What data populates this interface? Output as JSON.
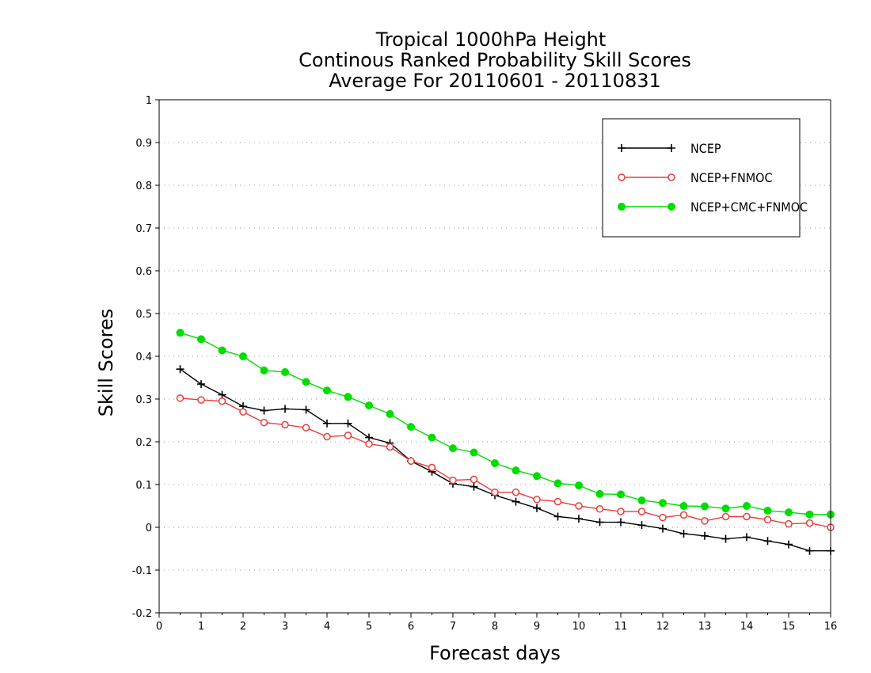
{
  "chart_data": {
    "type": "line",
    "title": [
      "Tropical 1000hPa Height",
      "Continous Ranked Probability Skill Scores",
      "Average For 20110601 - 20110831"
    ],
    "xlabel": "Forecast days",
    "ylabel": "Skill Scores",
    "xlim": [
      0,
      16
    ],
    "ylim": [
      -0.2,
      1
    ],
    "xticks": [
      "0",
      "1",
      "2",
      "3",
      "4",
      "5",
      "6",
      "7",
      "8",
      "9",
      "10",
      "11",
      "12",
      "13",
      "14",
      "15",
      "16"
    ],
    "yticks": [
      "-0.2",
      "-0.1",
      "0",
      "0.1",
      "0.2",
      "0.3",
      "0.4",
      "0.5",
      "0.6",
      "0.7",
      "0.8",
      "0.9",
      "1"
    ],
    "grid": "horizontal dotted",
    "legend_position": "top-right",
    "x": [
      0.5,
      1,
      1.5,
      2,
      2.5,
      3,
      3.5,
      4,
      4.5,
      5,
      5.5,
      6,
      6.5,
      7,
      7.5,
      8,
      8.5,
      9,
      9.5,
      10,
      10.5,
      11,
      11.5,
      12,
      12.5,
      13,
      13.5,
      14,
      14.5,
      15,
      15.5,
      16
    ],
    "series": [
      {
        "name": "NCEP",
        "color": "#000000",
        "marker": "plus",
        "values": [
          0.37,
          0.335,
          0.31,
          0.283,
          0.273,
          0.277,
          0.275,
          0.243,
          0.243,
          0.21,
          0.197,
          0.155,
          0.13,
          0.102,
          0.095,
          0.075,
          0.06,
          0.045,
          0.025,
          0.02,
          0.012,
          0.012,
          0.005,
          -0.003,
          -0.015,
          -0.02,
          -0.027,
          -0.023,
          -0.032,
          -0.04,
          -0.055,
          -0.055
        ]
      },
      {
        "name": "NCEP+FNMOC",
        "color": "#e83c3c",
        "marker": "open-circle",
        "values": [
          0.302,
          0.298,
          0.295,
          0.27,
          0.245,
          0.24,
          0.233,
          0.212,
          0.215,
          0.195,
          0.188,
          0.155,
          0.14,
          0.11,
          0.112,
          0.082,
          0.082,
          0.065,
          0.06,
          0.05,
          0.043,
          0.037,
          0.037,
          0.023,
          0.029,
          0.015,
          0.025,
          0.025,
          0.018,
          0.008,
          0.01,
          0.0
        ]
      },
      {
        "name": "NCEP+CMC+FNMOC",
        "color": "#00dd00",
        "marker": "filled-circle",
        "values": [
          0.455,
          0.44,
          0.414,
          0.4,
          0.367,
          0.363,
          0.34,
          0.32,
          0.305,
          0.285,
          0.265,
          0.235,
          0.21,
          0.185,
          0.175,
          0.15,
          0.133,
          0.12,
          0.103,
          0.098,
          0.078,
          0.077,
          0.063,
          0.057,
          0.05,
          0.049,
          0.044,
          0.05,
          0.039,
          0.035,
          0.03,
          0.03
        ]
      }
    ]
  }
}
